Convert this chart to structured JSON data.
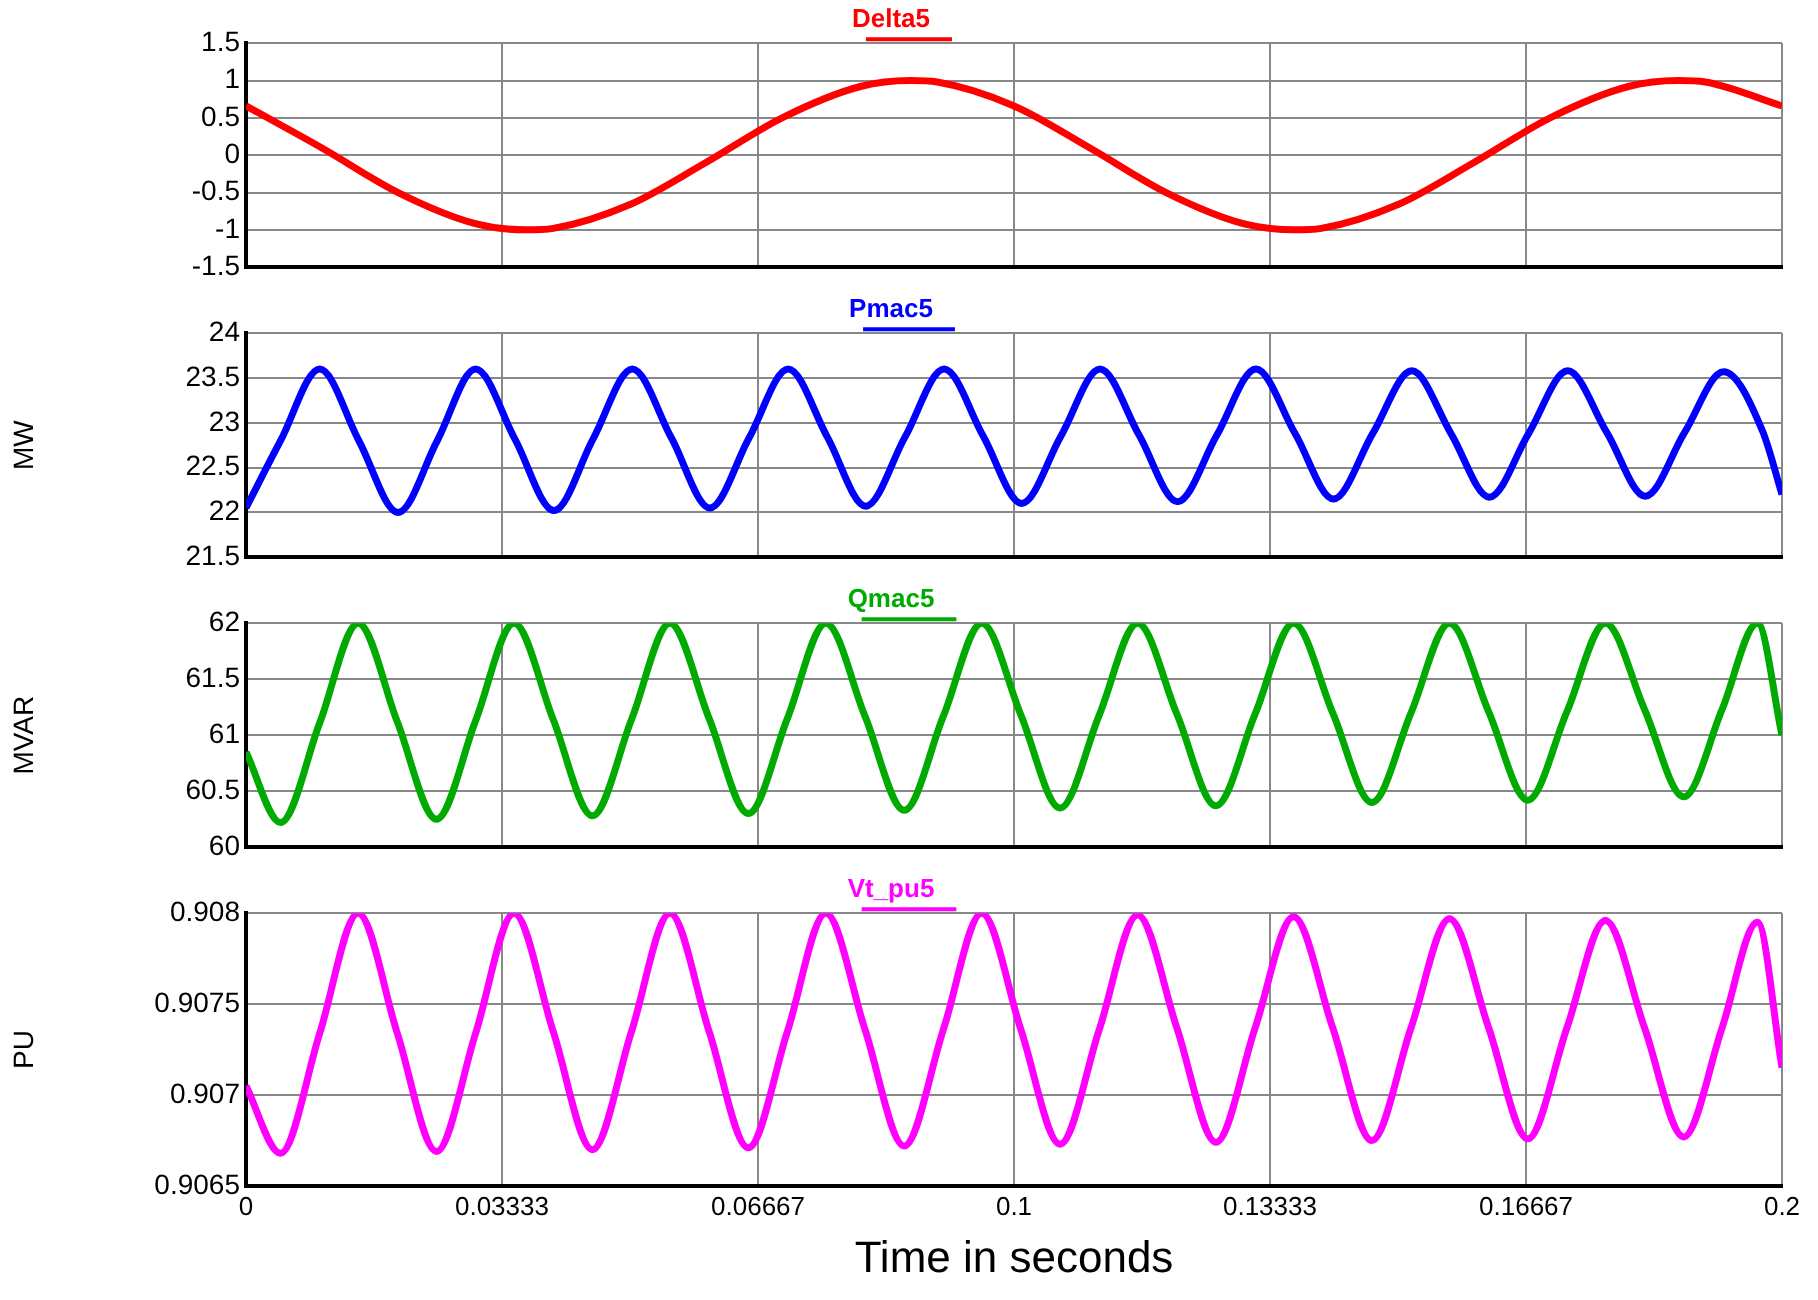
{
  "chart_data": [
    {
      "type": "line",
      "title": "Delta5",
      "x": [
        0,
        0.01,
        0.02,
        0.03,
        0.0365,
        0.04,
        0.05,
        0.06,
        0.07,
        0.08,
        0.0865,
        0.09,
        0.1,
        0.11,
        0.12,
        0.13,
        0.1365,
        0.14,
        0.15,
        0.16,
        0.17,
        0.18,
        0.1865,
        0.19,
        0.2
      ],
      "series": [
        {
          "color": "#ff0000",
          "values": [
            0.66,
            0.09,
            -0.51,
            -0.92,
            -1,
            -0.98,
            -0.66,
            -0.09,
            0.51,
            0.92,
            1,
            0.98,
            0.66,
            0.09,
            -0.51,
            -0.92,
            -1,
            -0.98,
            -0.66,
            -0.09,
            0.51,
            0.92,
            1,
            0.98,
            0.66
          ]
        }
      ],
      "xlim": [
        0,
        0.2
      ],
      "xticks": [
        0,
        0.03333,
        0.06667,
        0.1,
        0.13333,
        0.16667,
        0.2
      ],
      "ylim": [
        -1.5,
        1.5
      ],
      "yticks": [
        -1.5,
        -1,
        -0.5,
        0,
        0.5,
        1,
        1.5
      ],
      "grid": true,
      "tick_labels": "y",
      "marker": "none",
      "legend": false
    },
    {
      "type": "line",
      "title": "Pmac5",
      "ylabel": "MW",
      "x": [
        0,
        0.0045,
        0.0096,
        0.0147,
        0.0198,
        0.0249,
        0.0299,
        0.035,
        0.0401,
        0.0452,
        0.0503,
        0.0554,
        0.0604,
        0.0655,
        0.0706,
        0.0757,
        0.0807,
        0.0858,
        0.0909,
        0.096,
        0.101,
        0.1061,
        0.1112,
        0.1163,
        0.1213,
        0.1264,
        0.1315,
        0.1366,
        0.1416,
        0.1467,
        0.1518,
        0.1569,
        0.1619,
        0.167,
        0.1721,
        0.1772,
        0.1822,
        0.1873,
        0.1924,
        0.1975,
        0.2
      ],
      "series": [
        {
          "color": "#0000ff",
          "values": [
            22.05,
            22.8,
            23.6,
            22.8,
            22.0,
            22.8,
            23.6,
            22.82,
            22.02,
            22.82,
            23.6,
            22.83,
            22.05,
            22.83,
            23.6,
            22.84,
            22.07,
            22.84,
            23.6,
            22.85,
            22.1,
            22.85,
            23.6,
            22.86,
            22.12,
            22.86,
            23.6,
            22.88,
            22.15,
            22.88,
            23.58,
            22.88,
            22.17,
            22.88,
            23.58,
            22.89,
            22.18,
            22.89,
            23.57,
            22.9,
            22.2
          ]
        }
      ],
      "xlim": [
        0,
        0.2
      ],
      "xticks": [
        0,
        0.03333,
        0.06667,
        0.1,
        0.13333,
        0.16667,
        0.2
      ],
      "ylim": [
        21.5,
        24
      ],
      "yticks": [
        21.5,
        22,
        22.5,
        23,
        23.5,
        24
      ],
      "grid": true,
      "tick_labels": "y",
      "marker": "none",
      "legend": false
    },
    {
      "type": "line",
      "title": "Qmac5",
      "ylabel": "MVAR",
      "x": [
        0,
        0.0045,
        0.0096,
        0.0146,
        0.0197,
        0.0248,
        0.0299,
        0.0349,
        0.04,
        0.0451,
        0.0502,
        0.0552,
        0.0603,
        0.0654,
        0.0705,
        0.0755,
        0.0806,
        0.0857,
        0.0908,
        0.0958,
        0.1009,
        0.106,
        0.1111,
        0.1161,
        0.1212,
        0.1263,
        0.1314,
        0.1364,
        0.1415,
        0.1466,
        0.1517,
        0.1567,
        0.1618,
        0.1669,
        0.172,
        0.177,
        0.1821,
        0.1872,
        0.1922,
        0.1968,
        0.2
      ],
      "series": [
        {
          "color": "#00aa00",
          "values": [
            60.85,
            60.22,
            61.11,
            62,
            61.12,
            60.25,
            61.13,
            62,
            61.14,
            60.28,
            61.14,
            62,
            61.15,
            60.3,
            61.15,
            62,
            61.17,
            60.33,
            61.17,
            62,
            61.18,
            60.35,
            61.18,
            62,
            61.19,
            60.37,
            61.19,
            62,
            61.2,
            60.4,
            61.2,
            62,
            61.21,
            60.42,
            61.21,
            62,
            61.23,
            60.45,
            61.23,
            62,
            61.0
          ]
        }
      ],
      "xlim": [
        0,
        0.2
      ],
      "xticks": [
        0,
        0.03333,
        0.06667,
        0.1,
        0.13333,
        0.16667,
        0.2
      ],
      "ylim": [
        60,
        62
      ],
      "yticks": [
        60,
        60.5,
        61,
        61.5,
        62
      ],
      "grid": true,
      "tick_labels": "y",
      "marker": "none",
      "legend": false
    },
    {
      "type": "line",
      "title": "Vt_pu5",
      "ylabel": "PU",
      "xlabel": "Time in seconds",
      "x": [
        0,
        0.0045,
        0.0096,
        0.0146,
        0.0197,
        0.0248,
        0.0299,
        0.0349,
        0.04,
        0.0451,
        0.0502,
        0.0552,
        0.0603,
        0.0654,
        0.0705,
        0.0755,
        0.0806,
        0.0857,
        0.0908,
        0.0958,
        0.1009,
        0.106,
        0.1111,
        0.1161,
        0.1212,
        0.1263,
        0.1314,
        0.1364,
        0.1415,
        0.1466,
        0.1517,
        0.1567,
        0.1618,
        0.1669,
        0.172,
        0.177,
        0.1821,
        0.1872,
        0.1922,
        0.1968,
        0.2
      ],
      "series": [
        {
          "color": "#ff00ff",
          "values": [
            0.90705,
            0.90668,
            0.90734,
            0.908,
            0.90734,
            0.90669,
            0.90734,
            0.908,
            0.90735,
            0.9067,
            0.90735,
            0.908,
            0.90735,
            0.90671,
            0.90735,
            0.908,
            0.90736,
            0.90672,
            0.90736,
            0.908,
            0.90736,
            0.90673,
            0.90736,
            0.90799,
            0.90737,
            0.90674,
            0.90737,
            0.90798,
            0.90737,
            0.90675,
            0.90737,
            0.90797,
            0.90737,
            0.90676,
            0.90737,
            0.90796,
            0.90737,
            0.90677,
            0.90737,
            0.90795,
            0.90715
          ]
        }
      ],
      "xlim": [
        0,
        0.2
      ],
      "xticks": [
        0,
        0.03333,
        0.06667,
        0.1,
        0.13333,
        0.16667,
        0.2
      ],
      "ylim": [
        0.9065,
        0.908
      ],
      "yticks": [
        0.9065,
        0.907,
        0.9075,
        0.908
      ],
      "grid": true,
      "marker": "none",
      "legend": false
    }
  ]
}
